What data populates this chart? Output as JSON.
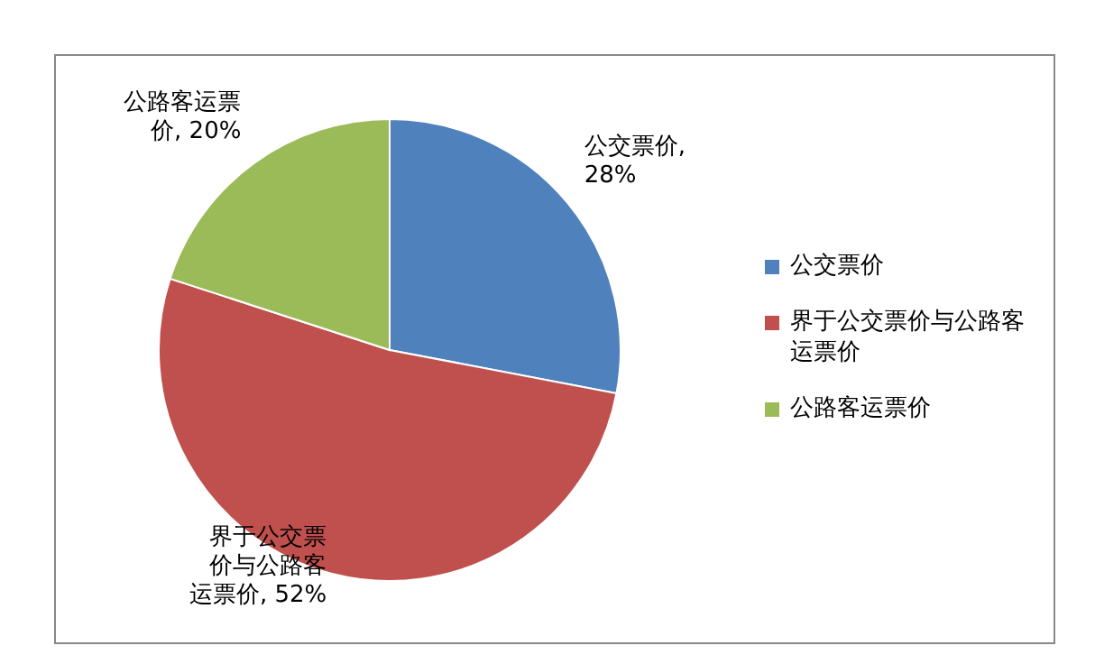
{
  "chart_data": {
    "type": "pie",
    "categories": [
      "公交票价",
      "界于公交票价与公路客运票价",
      "公路客运票价"
    ],
    "values": [
      28,
      52,
      20
    ],
    "colors": [
      "#4f81bd",
      "#c0504d",
      "#9bbb59"
    ],
    "value_labels": [
      "公交票价, 28%",
      "界于公交票价与公路客运票价, 52%",
      "公路客运票价, 20%"
    ],
    "legend": "right"
  }
}
